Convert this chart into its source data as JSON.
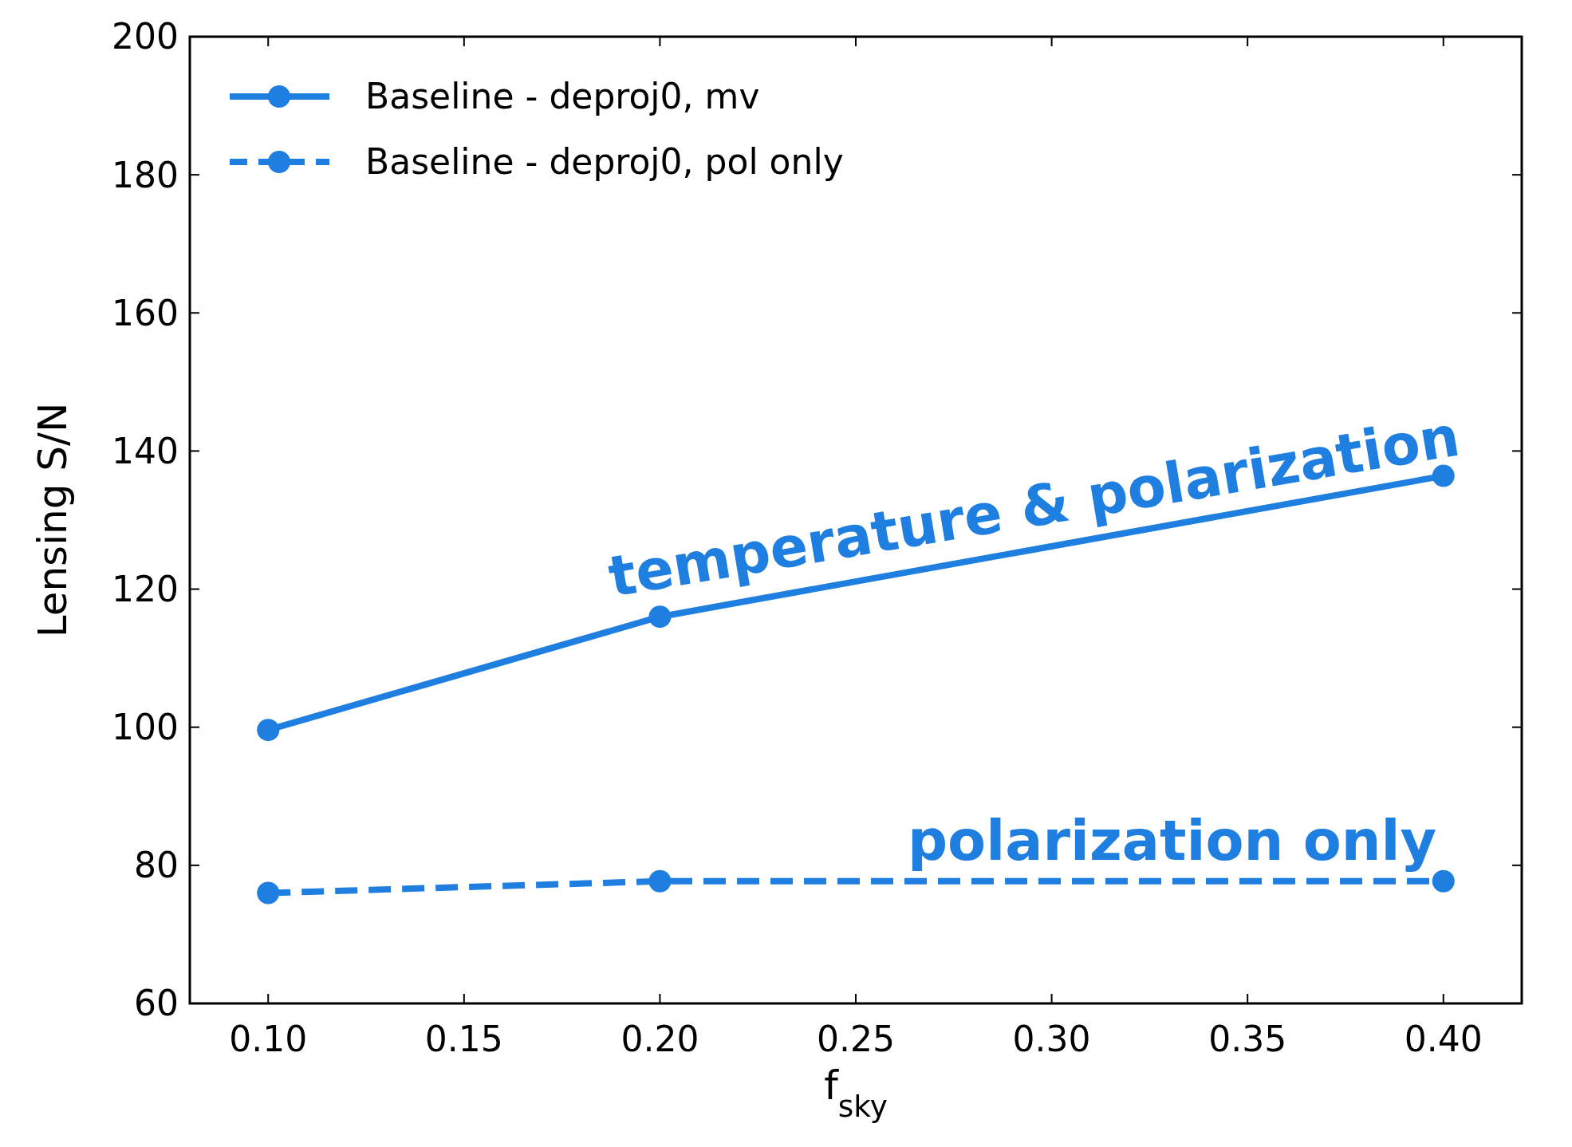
{
  "chart_data": {
    "type": "line",
    "xlabel": "f$_{sky}$",
    "ylabel": "Lensing S/N",
    "x": [
      0.1,
      0.2,
      0.4
    ],
    "series": [
      {
        "name": "Baseline - deproj0, mv",
        "color": "#1f7fe0",
        "values": [
          99.6,
          116,
          136.4
        ],
        "line_style": "solid"
      },
      {
        "name": "Baseline - deproj0, pol only",
        "color": "#1f7fe0",
        "values": [
          76,
          77.7,
          77.7
        ],
        "line_style": "dashed"
      }
    ],
    "xlim": [
      0.08,
      0.42
    ],
    "xticks": [
      {
        "value": 0.1,
        "label": "0.10"
      },
      0.15,
      {
        "value": 0.2,
        "label": "0.20"
      },
      0.25,
      {
        "value": 0.3,
        "label": "0.30"
      },
      0.35,
      {
        "value": 0.4,
        "label": "0.40"
      }
    ],
    "ylim": [
      60,
      200
    ],
    "yticks": [
      60,
      80,
      100,
      120,
      140,
      160,
      180,
      200
    ],
    "marker": "circle",
    "legend": "top left",
    "grid": false,
    "annotations": [
      "temperature & polarization",
      "polarization only"
    ]
  }
}
